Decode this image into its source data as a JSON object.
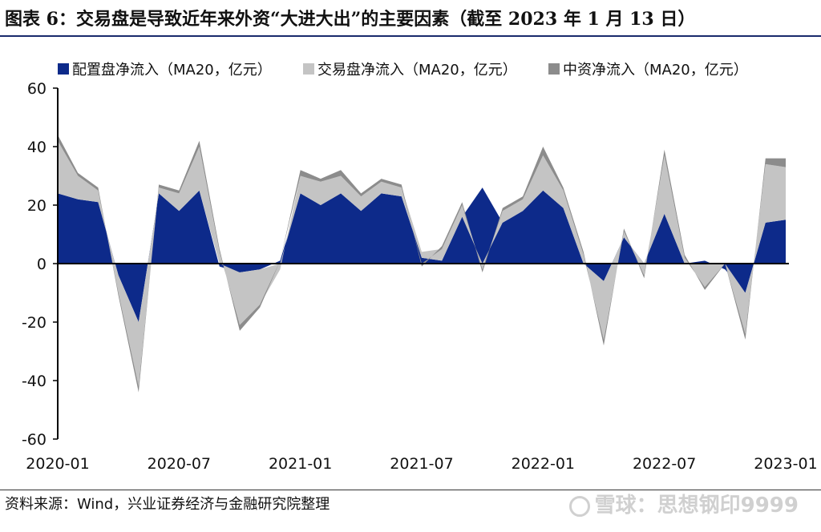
{
  "figure": {
    "title": "图表 6：交易盘是导致近年来外资“大进大出”的主要因素（截至 2023 年 1 月 13 日）",
    "source": "资料来源：Wind，兴业证券经济与金融研究院整理",
    "watermark": "雪球：思想钢印9999"
  },
  "chart_data": {
    "type": "area",
    "stacked": true,
    "title": "",
    "xlabel": "",
    "ylabel": "",
    "ylim": [
      -60,
      60
    ],
    "yticks": [
      60,
      40,
      20,
      0,
      -20,
      -40,
      -60
    ],
    "xlim": [
      "2020-01",
      "2023-01"
    ],
    "xtick_labels": [
      "2020-01",
      "2020-07",
      "2021-01",
      "2021-07",
      "2022-01",
      "2022-07",
      "2023-01"
    ],
    "grid": false,
    "legend_position": "top",
    "x": [
      "2020-01",
      "2020-02",
      "2020-03",
      "2020-04",
      "2020-05",
      "2020-06",
      "2020-07",
      "2020-08",
      "2020-09",
      "2020-10",
      "2020-11",
      "2020-12",
      "2021-01",
      "2021-02",
      "2021-03",
      "2021-04",
      "2021-05",
      "2021-06",
      "2021-07",
      "2021-08",
      "2021-09",
      "2021-10",
      "2021-11",
      "2021-12",
      "2022-01",
      "2022-02",
      "2022-03",
      "2022-04",
      "2022-05",
      "2022-06",
      "2022-07",
      "2022-08",
      "2022-09",
      "2022-10",
      "2022-11",
      "2022-12",
      "2023-01"
    ],
    "series": [
      {
        "name": "配置盘净流入（MA20，亿元）",
        "color": "#0d2a8a",
        "values": [
          24,
          22,
          21,
          -4,
          -20,
          24,
          18,
          25,
          -1,
          -3,
          -2,
          1,
          24,
          20,
          24,
          18,
          24,
          23,
          2,
          1,
          16,
          26,
          14,
          18,
          25,
          19,
          0,
          -6,
          9,
          0,
          17,
          0,
          1,
          -2,
          -10,
          14,
          15
        ]
      },
      {
        "name": "交易盘净流入（MA20，亿元）",
        "color": "#c4c4c4",
        "values": [
          18,
          8,
          4,
          -6,
          -22,
          2,
          6,
          15,
          4,
          -18,
          -12,
          -2,
          6,
          8,
          6,
          5,
          4,
          3,
          2,
          4,
          4,
          -2,
          4,
          4,
          12,
          6,
          3,
          -20,
          2,
          -4,
          20,
          2,
          -8,
          0,
          -14,
          20,
          18
        ]
      },
      {
        "name": "中资净流入（MA20，亿元）",
        "color": "#8c8c8c",
        "values": [
          2,
          1,
          1,
          -1,
          -2,
          1,
          1,
          2,
          1,
          -2,
          -1,
          0,
          2,
          1,
          2,
          1,
          1,
          1,
          -1,
          1,
          1,
          -1,
          1,
          1,
          3,
          1,
          1,
          -2,
          1,
          -1,
          2,
          1,
          -1,
          0,
          -2,
          2,
          3
        ]
      }
    ]
  }
}
